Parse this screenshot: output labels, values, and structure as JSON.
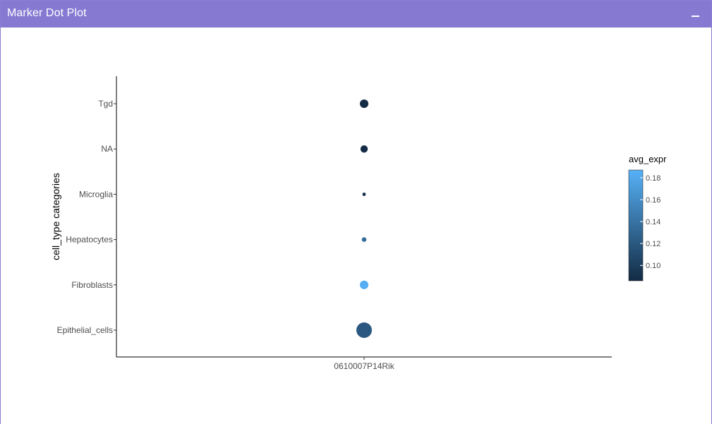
{
  "panel": {
    "title": "Marker Dot Plot",
    "collapse_icon": "minus-icon"
  },
  "colors": {
    "header": "#8679d2",
    "low": "#132b43",
    "high": "#56b1f7"
  },
  "chart_data": {
    "type": "scatter",
    "title": "",
    "xlabel": "",
    "ylabel": "cell_type categories",
    "x_categories": [
      "0610007P14Rik"
    ],
    "y_categories": [
      "Epithelial_cells",
      "Fibroblasts",
      "Hepatocytes",
      "Microglia",
      "NA",
      "Tgd"
    ],
    "points": [
      {
        "gene": "0610007P14Rik",
        "cell_type": "Tgd",
        "avg_expr": 0.087,
        "size_rel": 0.55
      },
      {
        "gene": "0610007P14Rik",
        "cell_type": "NA",
        "avg_expr": 0.087,
        "size_rel": 0.47
      },
      {
        "gene": "0610007P14Rik",
        "cell_type": "Microglia",
        "avg_expr": 0.09,
        "size_rel": 0.22
      },
      {
        "gene": "0610007P14Rik",
        "cell_type": "Hepatocytes",
        "avg_expr": 0.135,
        "size_rel": 0.3
      },
      {
        "gene": "0610007P14Rik",
        "cell_type": "Fibroblasts",
        "avg_expr": 0.185,
        "size_rel": 0.55
      },
      {
        "gene": "0610007P14Rik",
        "cell_type": "Epithelial_cells",
        "avg_expr": 0.12,
        "size_rel": 1.0
      }
    ],
    "colorbar": {
      "title": "avg_expr",
      "range": [
        0.086,
        0.187
      ],
      "ticks": [
        0.1,
        0.12,
        0.14,
        0.16,
        0.18
      ],
      "tick_labels": [
        "0.10",
        "0.12",
        "0.14",
        "0.16",
        "0.18"
      ]
    },
    "grid": false,
    "legend": "right"
  }
}
